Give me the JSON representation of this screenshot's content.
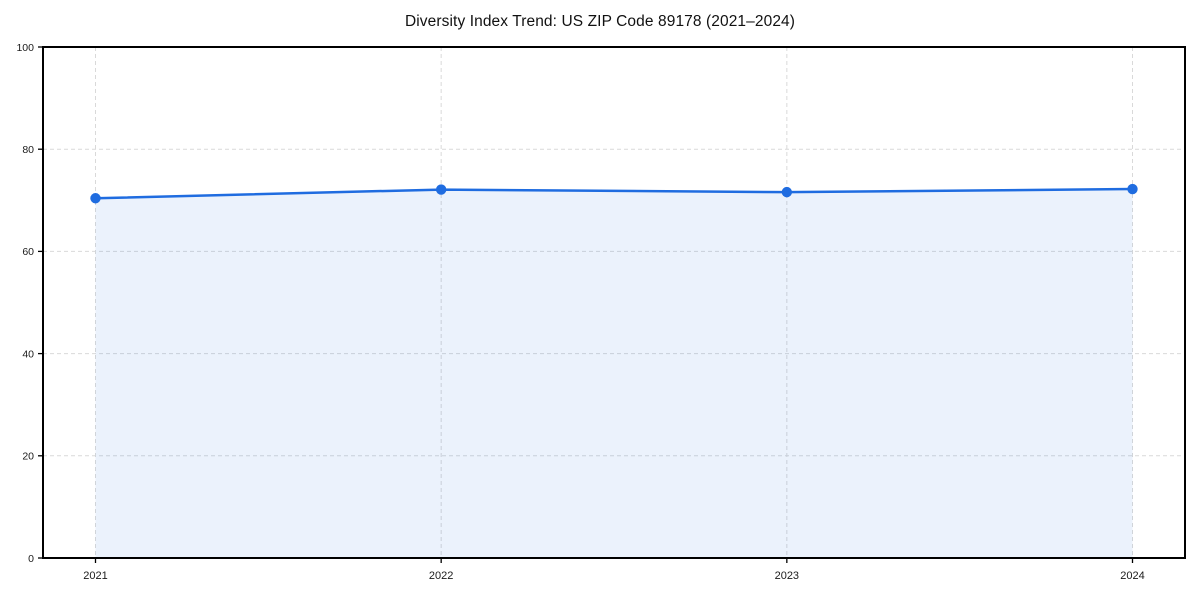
{
  "figure": {
    "background_color": "#ffffff"
  },
  "chart_data": {
    "type": "line",
    "title": "Diversity Index Trend: US ZIP Code 89178 (2021–2024)",
    "xlabel": "",
    "ylabel": "",
    "categories": [
      "2021",
      "2022",
      "2023",
      "2024"
    ],
    "x": [
      2021,
      2022,
      2023,
      2024
    ],
    "series": [
      {
        "name": "Diversity Index",
        "values": [
          70.4,
          72.1,
          71.6,
          72.2
        ]
      }
    ],
    "ylim": [
      0,
      100
    ],
    "yticks": [
      0,
      20,
      40,
      60,
      80,
      100
    ],
    "grid": "dashed, both axes, behind data",
    "legend": "none",
    "style": {
      "line_color": "#1f6ce0",
      "marker_color": "#1f6ce0",
      "marker_shape": "circle",
      "area_fill_color": "rgba(31,108,224,0.09)",
      "grid_color": "#d9d9d9",
      "spine_color": "#000000",
      "tick_color": "#000000",
      "label_color": "#1a1a1a"
    }
  }
}
